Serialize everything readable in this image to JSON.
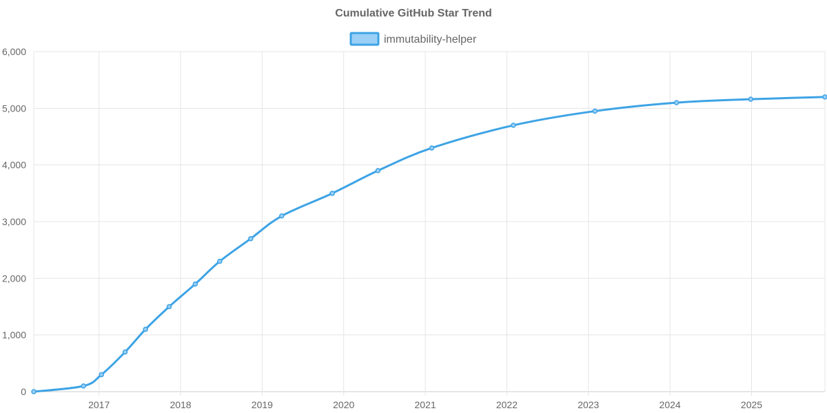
{
  "chart_data": {
    "type": "line",
    "title": "Cumulative GitHub Star Trend",
    "xlabel": "",
    "ylabel": "",
    "legend_position": "top-center",
    "grid": true,
    "xlim": [
      2016.12,
      2025.82
    ],
    "ylim": [
      0,
      6000
    ],
    "y_ticks": [
      0,
      1000,
      2000,
      3000,
      4000,
      5000,
      6000
    ],
    "y_tick_labels": [
      "0",
      "1,000",
      "2,000",
      "3,000",
      "4,000",
      "5,000",
      "6,000"
    ],
    "x_ticks": [
      2016.92,
      2017.92,
      2018.92,
      2019.92,
      2020.92,
      2021.92,
      2022.92,
      2023.92,
      2024.92
    ],
    "x_tick_labels": [
      "2017",
      "2018",
      "2019",
      "2020",
      "2021",
      "2022",
      "2023",
      "2024",
      "2025"
    ],
    "x_grid": [
      2016.12,
      2016.92,
      2017.92,
      2018.92,
      2019.92,
      2020.92,
      2021.92,
      2022.92,
      2023.92,
      2024.92,
      2025.82
    ],
    "series": [
      {
        "name": "immutability-helper",
        "color": "#3da3e5",
        "fill": "#9ad0f5",
        "x": [
          2016.12,
          2016.73,
          2016.95,
          2017.24,
          2017.49,
          2017.78,
          2018.1,
          2018.4,
          2018.78,
          2019.16,
          2019.78,
          2020.34,
          2021.0,
          2022.0,
          2023.0,
          2024.0,
          2024.91,
          2025.82
        ],
        "values": [
          0,
          100,
          300,
          700,
          1100,
          1500,
          1900,
          2300,
          2700,
          3100,
          3500,
          3900,
          4300,
          4700,
          4950,
          5100,
          5160,
          5200
        ]
      }
    ]
  }
}
